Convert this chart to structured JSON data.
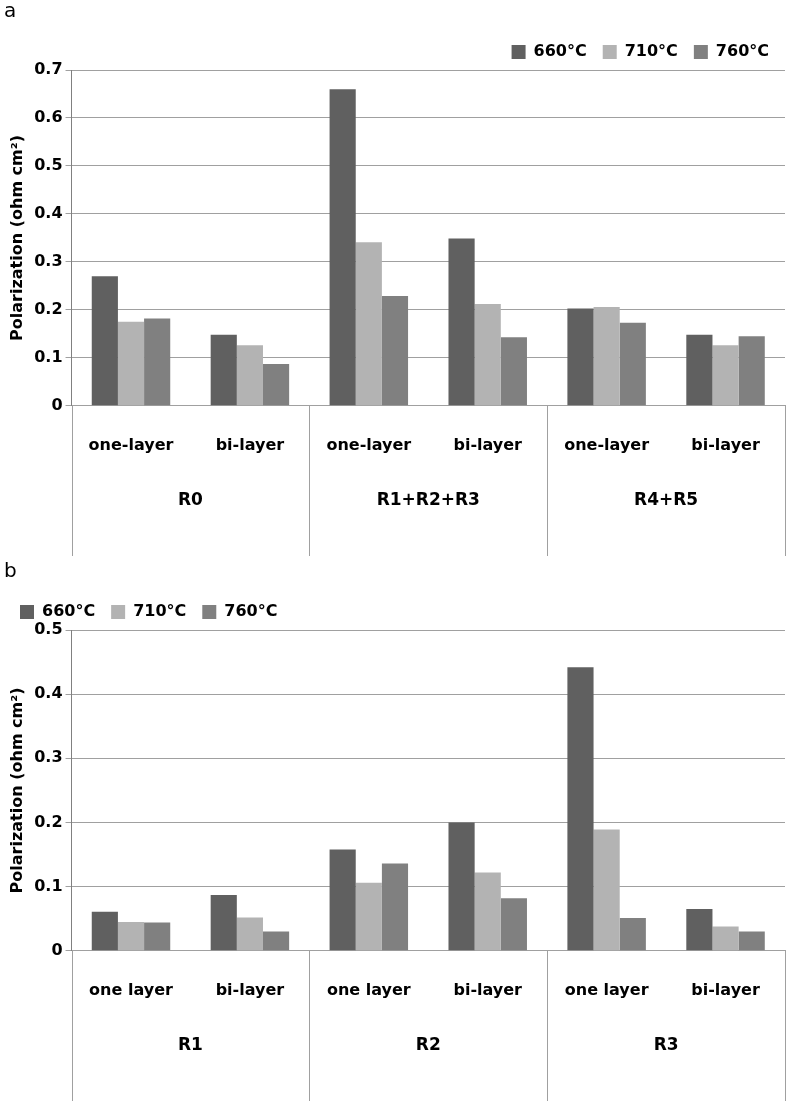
{
  "chart_data": [
    {
      "type": "bar",
      "title": "a",
      "ylabel": "Polarization (ohm cm²)",
      "categories": [
        "one-layer",
        "bi-layer",
        "one-layer",
        "bi-layer",
        "one-layer",
        "bi-layer"
      ],
      "series": [
        {
          "name": "660°C",
          "color": "#606060",
          "values": [
            0.27,
            0.148,
            0.66,
            0.349,
            0.203,
            0.148
          ]
        },
        {
          "name": "710°C",
          "color": "#b3b3b3",
          "values": [
            0.175,
            0.126,
            0.341,
            0.212,
            0.206,
            0.126
          ]
        },
        {
          "name": "760°C",
          "color": "#808080",
          "values": [
            0.182,
            0.087,
            0.229,
            0.143,
            0.173,
            0.145
          ]
        }
      ],
      "ylim": [
        0,
        0.7
      ],
      "yticks": [
        0,
        0.1,
        0.2,
        0.3,
        0.4,
        0.5,
        0.6,
        0.7
      ],
      "grid": "y",
      "legend": "top right",
      "annotations": [
        "R0",
        "R1+R2+R3",
        "R4+R5"
      ]
    },
    {
      "type": "bar",
      "title": "b",
      "ylabel": "Polarization (ohm cm²)",
      "categories": [
        "one layer",
        "bi-layer",
        "one layer",
        "bi-layer",
        "one layer",
        "bi-layer"
      ],
      "series": [
        {
          "name": "660°C",
          "color": "#606060",
          "values": [
            0.061,
            0.087,
            0.158,
            0.2,
            0.442,
            0.065
          ]
        },
        {
          "name": "710°C",
          "color": "#b3b3b3",
          "values": [
            0.045,
            0.052,
            0.106,
            0.122,
            0.189,
            0.038
          ]
        },
        {
          "name": "760°C",
          "color": "#808080",
          "values": [
            0.044,
            0.03,
            0.136,
            0.082,
            0.051,
            0.03
          ]
        }
      ],
      "ylim": [
        0,
        0.5
      ],
      "yticks": [
        0,
        0.1,
        0.2,
        0.3,
        0.4,
        0.5
      ],
      "grid": "y",
      "legend": "top left",
      "annotations": [
        "R1",
        "R2",
        "R3"
      ]
    }
  ]
}
